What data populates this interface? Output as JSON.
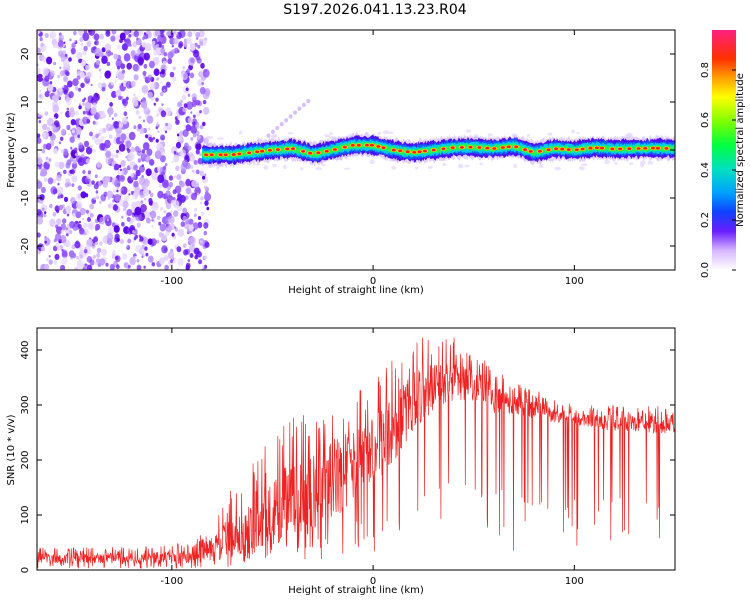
{
  "title": "S197.2026.041.13.23.R04",
  "chart_data": [
    {
      "type": "heatmap",
      "xlabel": "Height of straight line (km)",
      "ylabel": "Frequency (Hz)",
      "xlim": [
        -167,
        150
      ],
      "ylim": [
        -25,
        25
      ],
      "xticks": [
        -100,
        0,
        100
      ],
      "yticks": [
        -20,
        -10,
        0,
        10,
        20
      ],
      "colorbar": {
        "label": "Normalized spectral amplitude",
        "range": [
          0,
          0.96
        ],
        "ticks": [
          0.0,
          0.2,
          0.4,
          0.6,
          0.8
        ]
      },
      "noise_region_end_km": -85,
      "band_center_hz": [
        [
          -85,
          -1.0
        ],
        [
          -70,
          -1.0
        ],
        [
          -60,
          -0.5
        ],
        [
          -50,
          0.0
        ],
        [
          -40,
          0.3
        ],
        [
          -30,
          -0.8
        ],
        [
          -20,
          0.0
        ],
        [
          -10,
          1.0
        ],
        [
          0,
          1.0
        ],
        [
          10,
          0.0
        ],
        [
          20,
          -0.5
        ],
        [
          30,
          0.0
        ],
        [
          40,
          0.5
        ],
        [
          50,
          0.6
        ],
        [
          60,
          0.3
        ],
        [
          70,
          0.8
        ],
        [
          80,
          -0.5
        ],
        [
          90,
          0.3
        ],
        [
          100,
          0.0
        ],
        [
          110,
          0.5
        ],
        [
          120,
          0.2
        ],
        [
          130,
          0.3
        ],
        [
          140,
          0.4
        ],
        [
          150,
          0.3
        ]
      ]
    },
    {
      "type": "line",
      "series": [
        {
          "name": "SNR",
          "color": "#ee2222"
        }
      ],
      "xlabel": "Height of straight line (km)",
      "ylabel": "SNR (10 * v/v)",
      "xlim": [
        -167,
        150
      ],
      "ylim": [
        0,
        440
      ],
      "xticks": [
        -100,
        0,
        100
      ],
      "yticks": [
        0,
        100,
        200,
        300,
        400
      ],
      "envelope": {
        "x": [
          -167,
          -120,
          -90,
          -80,
          -70,
          -60,
          -50,
          -40,
          -30,
          -20,
          -10,
          0,
          10,
          20,
          30,
          40,
          50,
          60,
          70,
          80,
          90,
          100,
          110,
          120,
          130,
          140,
          150
        ],
        "mean": [
          20,
          20,
          22,
          35,
          60,
          80,
          100,
          120,
          135,
          160,
          180,
          210,
          250,
          300,
          330,
          340,
          330,
          310,
          300,
          290,
          280,
          275,
          270,
          265,
          265,
          262,
          260
        ],
        "peak": [
          40,
          42,
          50,
          85,
          150,
          200,
          240,
          280,
          300,
          320,
          330,
          345,
          390,
          420,
          430,
          425,
          400,
          370,
          340,
          330,
          310,
          300,
          300,
          300,
          295,
          300,
          290
        ]
      }
    }
  ]
}
